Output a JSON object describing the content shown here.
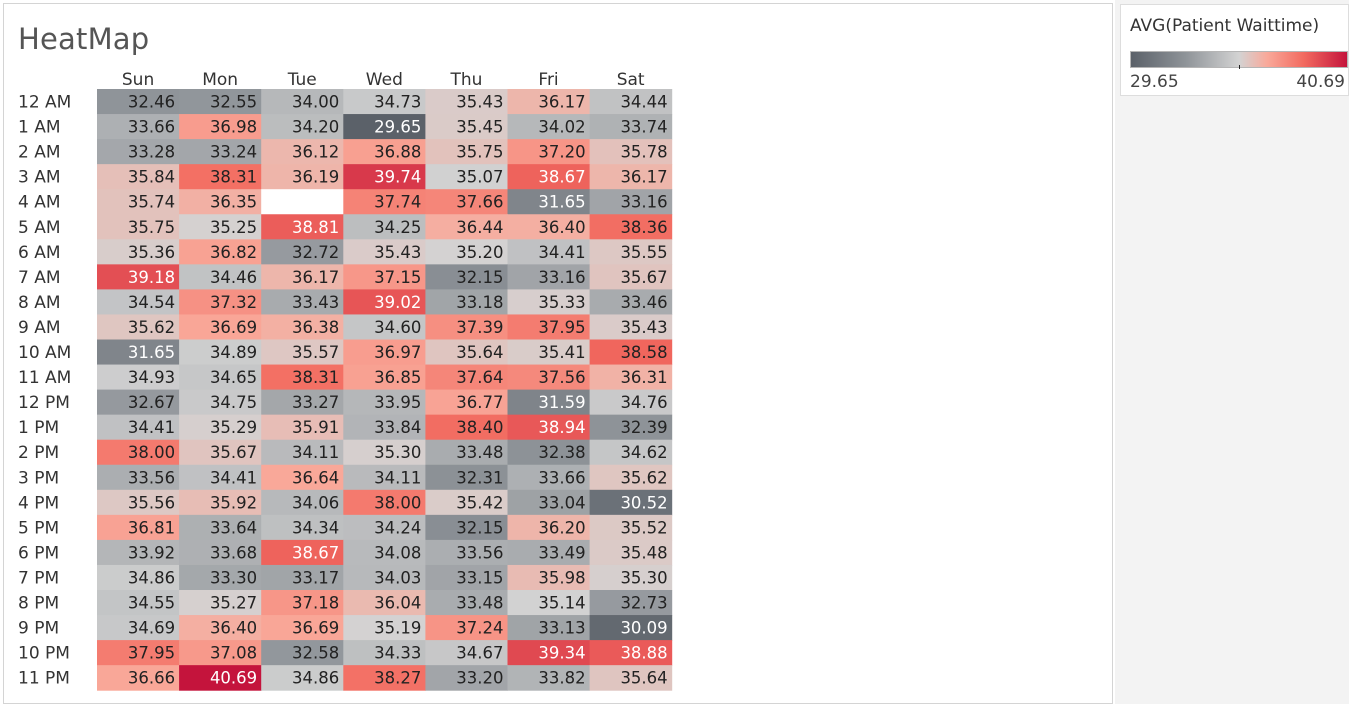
{
  "title": "HeatMap",
  "legend": {
    "title": "AVG(Patient Waittime)",
    "min_label": "29.65",
    "max_label": "40.69",
    "colors": [
      "#5b6169",
      "#8e9398",
      "#d3d3d3",
      "#f9a99a",
      "#f26a5f",
      "#c4143c"
    ]
  },
  "chart_data": {
    "type": "heatmap",
    "title": "HeatMap",
    "measure": "AVG(Patient Waittime)",
    "color_range": [
      29.65,
      40.69
    ],
    "columns": [
      "Sun",
      "Mon",
      "Tue",
      "Wed",
      "Thu",
      "Fri",
      "Sat"
    ],
    "rows": [
      "12 AM",
      "1 AM",
      "2 AM",
      "3 AM",
      "4 AM",
      "5 AM",
      "6 AM",
      "7 AM",
      "8 AM",
      "9 AM",
      "10 AM",
      "11 AM",
      "12 PM",
      "1 PM",
      "2 PM",
      "3 PM",
      "4 PM",
      "5 PM",
      "6 PM",
      "7 PM",
      "8 PM",
      "9 PM",
      "10 PM",
      "11 PM"
    ],
    "values": [
      [
        32.46,
        32.55,
        34.0,
        34.73,
        35.43,
        36.17,
        34.44
      ],
      [
        33.66,
        36.98,
        34.2,
        29.65,
        35.45,
        34.02,
        33.74
      ],
      [
        33.28,
        33.24,
        36.12,
        36.88,
        35.75,
        37.2,
        35.78
      ],
      [
        35.84,
        38.31,
        36.19,
        39.74,
        35.07,
        38.67,
        36.17
      ],
      [
        35.74,
        36.35,
        null,
        37.74,
        37.66,
        31.65,
        33.16
      ],
      [
        35.75,
        35.25,
        38.81,
        34.25,
        36.44,
        36.4,
        38.36
      ],
      [
        35.36,
        36.82,
        32.72,
        35.43,
        35.2,
        34.41,
        35.55
      ],
      [
        39.18,
        34.46,
        36.17,
        37.15,
        32.15,
        33.16,
        35.67
      ],
      [
        34.54,
        37.32,
        33.43,
        39.02,
        33.18,
        35.33,
        33.46
      ],
      [
        35.62,
        36.69,
        36.38,
        34.6,
        37.39,
        37.95,
        35.43
      ],
      [
        31.65,
        34.89,
        35.57,
        36.97,
        35.64,
        35.41,
        38.58
      ],
      [
        34.93,
        34.65,
        38.31,
        36.85,
        37.64,
        37.56,
        36.31
      ],
      [
        32.67,
        34.75,
        33.27,
        33.95,
        36.77,
        31.59,
        34.76
      ],
      [
        34.41,
        35.29,
        35.91,
        33.84,
        38.4,
        38.94,
        32.39
      ],
      [
        38.0,
        35.67,
        34.11,
        35.3,
        33.48,
        32.38,
        34.62
      ],
      [
        33.56,
        34.41,
        36.64,
        34.11,
        32.31,
        33.66,
        35.62
      ],
      [
        35.56,
        35.92,
        34.06,
        38.0,
        35.42,
        33.04,
        30.52
      ],
      [
        36.81,
        33.64,
        34.34,
        34.24,
        32.15,
        36.2,
        35.52
      ],
      [
        33.92,
        33.68,
        38.67,
        34.08,
        33.56,
        33.49,
        35.48
      ],
      [
        34.86,
        33.3,
        33.17,
        34.03,
        33.15,
        35.98,
        35.3
      ],
      [
        34.55,
        35.27,
        37.18,
        36.04,
        33.48,
        35.14,
        32.73
      ],
      [
        34.69,
        36.4,
        36.69,
        35.19,
        37.24,
        33.13,
        30.09
      ],
      [
        37.95,
        37.08,
        32.58,
        34.33,
        34.67,
        39.34,
        38.88
      ],
      [
        36.66,
        40.69,
        34.86,
        38.27,
        33.2,
        33.82,
        35.64
      ]
    ],
    "grid": false,
    "legend_position": "right"
  }
}
